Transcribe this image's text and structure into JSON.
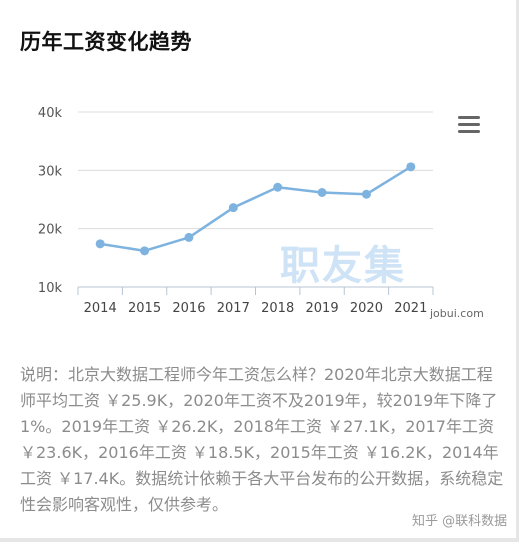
{
  "header": {
    "title": "历年工资变化趋势"
  },
  "chart_data": {
    "type": "line",
    "categories": [
      "2014",
      "2015",
      "2016",
      "2017",
      "2018",
      "2019",
      "2020",
      "2021"
    ],
    "values": [
      17.4,
      16.2,
      18.5,
      23.6,
      27.1,
      26.2,
      25.9,
      30.6
    ],
    "y_ticks": [
      "10k",
      "20k",
      "30k",
      "40k"
    ],
    "ylim": [
      10,
      40
    ],
    "grid": true,
    "color": "#7eb3e0"
  },
  "watermark": "职友集",
  "site_label": "jobui.com",
  "description": "说明：北京大数据工程师今年工资怎么样？2020年北京大数据工程师平均工资 ￥25.9K，2020年工资不及2019年，较2019年下降了1%。2019年工资 ￥26.2K，2018年工资 ￥27.1K，2017年工资 ￥23.6K，2016年工资 ￥18.5K，2015年工资 ￥16.2K，2014年工资 ￥17.4K。数据统计依赖于各大平台发布的公开数据，系统稳定性会影响客观性，仅供参考。",
  "credit": "知乎 @联科数据"
}
